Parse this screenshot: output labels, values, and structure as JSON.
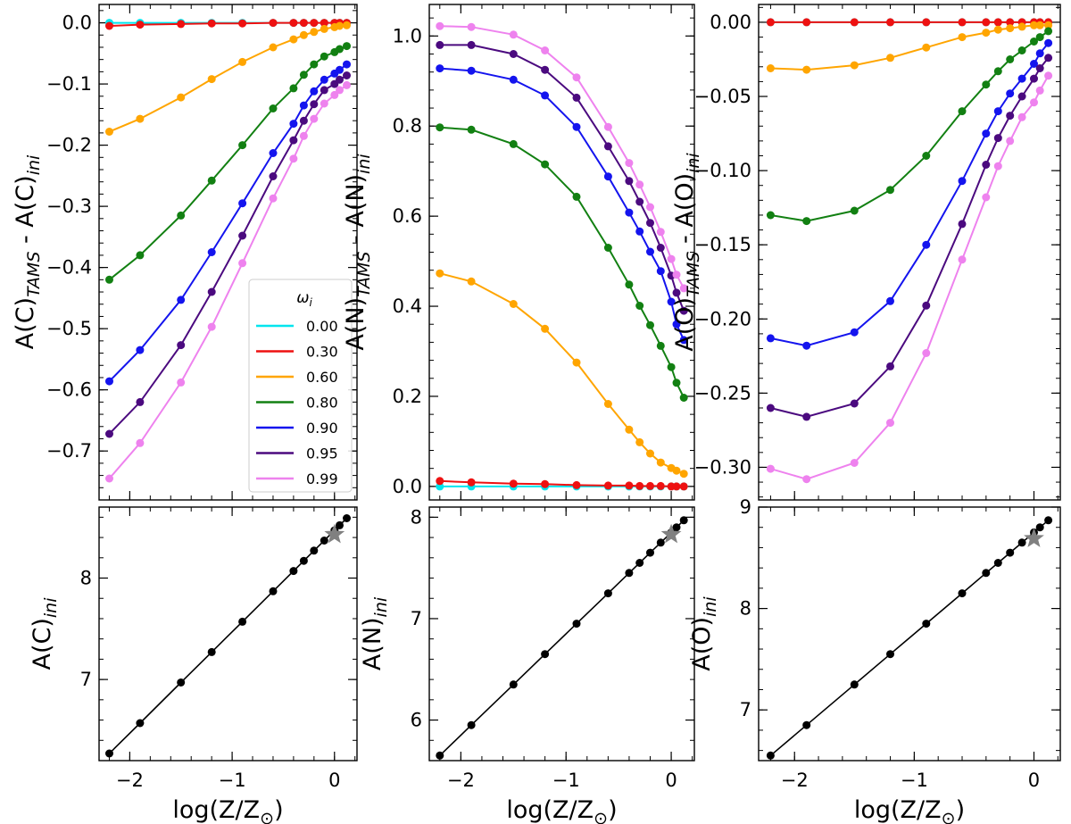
{
  "chart_data": [
    {
      "id": "carbon-top",
      "type": "line",
      "xlim": [
        -2.3,
        0.22
      ],
      "ylim": [
        -0.78,
        0.03
      ],
      "xticks": [
        -2,
        -1,
        0
      ],
      "yticks": [
        0.0,
        -0.1,
        -0.2,
        -0.3,
        -0.4,
        -0.5,
        -0.6,
        -0.7
      ],
      "ytick_labels": [
        "0.0",
        "−0.1",
        "−0.2",
        "−0.3",
        "−0.4",
        "−0.5",
        "−0.6",
        "−0.7"
      ],
      "x": [
        -2.2,
        -1.9,
        -1.5,
        -1.2,
        -0.9,
        -0.6,
        -0.4,
        -0.3,
        -0.2,
        -0.1,
        0.0,
        0.05,
        0.12
      ],
      "ylabel": {
        "base": "A(C)",
        "sub1": "TAMS",
        "mid": " - A(C)",
        "sub2": "ini"
      },
      "series": [
        {
          "name": "0.00",
          "color": "#00e5ee",
          "values": [
            0.0,
            0.0,
            0.0,
            0.0,
            0.0,
            0.0,
            0.0,
            0.0,
            0.0,
            0.0,
            0.0,
            0.0,
            0.0
          ]
        },
        {
          "name": "0.30",
          "color": "#ee1111",
          "values": [
            -0.005,
            -0.003,
            -0.002,
            -0.001,
            -0.001,
            0.0,
            0.0,
            0.0,
            0.0,
            0.0,
            0.0,
            0.0,
            0.0
          ]
        },
        {
          "name": "0.60",
          "color": "#ffa500",
          "values": [
            -0.178,
            -0.157,
            -0.122,
            -0.092,
            -0.064,
            -0.04,
            -0.027,
            -0.02,
            -0.015,
            -0.01,
            -0.007,
            -0.005,
            -0.004
          ]
        },
        {
          "name": "0.80",
          "color": "#128012",
          "values": [
            -0.42,
            -0.38,
            -0.315,
            -0.258,
            -0.2,
            -0.14,
            -0.107,
            -0.085,
            -0.068,
            -0.055,
            -0.048,
            -0.043,
            -0.038
          ]
        },
        {
          "name": "0.90",
          "color": "#1414ee",
          "values": [
            -0.586,
            -0.535,
            -0.453,
            -0.375,
            -0.295,
            -0.213,
            -0.165,
            -0.135,
            -0.112,
            -0.093,
            -0.083,
            -0.077,
            -0.068
          ]
        },
        {
          "name": "0.95",
          "color": "#4b0a7f",
          "values": [
            -0.672,
            -0.62,
            -0.527,
            -0.44,
            -0.348,
            -0.251,
            -0.192,
            -0.16,
            -0.133,
            -0.11,
            -0.1,
            -0.093,
            -0.086
          ]
        },
        {
          "name": "0.99",
          "color": "#ee82ee",
          "values": [
            -0.745,
            -0.687,
            -0.588,
            -0.497,
            -0.393,
            -0.287,
            -0.222,
            -0.185,
            -0.157,
            -0.132,
            -0.118,
            -0.11,
            -0.102
          ]
        }
      ],
      "legend": {
        "placement": "lower-right",
        "title": "ω",
        "title_sub": "i"
      }
    },
    {
      "id": "nitrogen-top",
      "type": "line",
      "xlim": [
        -2.3,
        0.22
      ],
      "ylim": [
        -0.03,
        1.07
      ],
      "xticks": [
        -2,
        -1,
        0
      ],
      "yticks": [
        0.0,
        0.2,
        0.4,
        0.6,
        0.8,
        1.0
      ],
      "ytick_labels": [
        "0.0",
        "0.2",
        "0.4",
        "0.6",
        "0.8",
        "1.0"
      ],
      "x": [
        -2.2,
        -1.9,
        -1.5,
        -1.2,
        -0.9,
        -0.6,
        -0.4,
        -0.3,
        -0.2,
        -0.1,
        0.0,
        0.05,
        0.12
      ],
      "ylabel": {
        "base": "A(N)",
        "sub1": "TAMS",
        "mid": " - A(N)",
        "sub2": "ini"
      },
      "series": [
        {
          "name": "0.00",
          "color": "#00e5ee",
          "values": [
            0.0,
            0.0,
            0.0,
            0.0,
            0.0,
            0.0,
            0.0,
            0.0,
            0.0,
            0.0,
            0.0,
            0.0,
            0.0
          ]
        },
        {
          "name": "0.30",
          "color": "#ee1111",
          "values": [
            0.012,
            0.009,
            0.006,
            0.005,
            0.003,
            0.002,
            0.002,
            0.001,
            0.001,
            0.001,
            0.0,
            0.0,
            0.0
          ]
        },
        {
          "name": "0.60",
          "color": "#ffa500",
          "values": [
            0.473,
            0.455,
            0.405,
            0.35,
            0.275,
            0.183,
            0.126,
            0.098,
            0.073,
            0.053,
            0.041,
            0.035,
            0.028
          ]
        },
        {
          "name": "0.80",
          "color": "#128012",
          "values": [
            0.797,
            0.792,
            0.76,
            0.715,
            0.643,
            0.53,
            0.448,
            0.401,
            0.358,
            0.312,
            0.265,
            0.23,
            0.197
          ]
        },
        {
          "name": "0.90",
          "color": "#1414ee",
          "values": [
            0.928,
            0.923,
            0.903,
            0.868,
            0.798,
            0.688,
            0.608,
            0.566,
            0.521,
            0.478,
            0.41,
            0.36,
            0.325
          ]
        },
        {
          "name": "0.95",
          "color": "#4b0a7f",
          "values": [
            0.98,
            0.98,
            0.96,
            0.925,
            0.863,
            0.755,
            0.678,
            0.632,
            0.585,
            0.53,
            0.468,
            0.43,
            0.39
          ]
        },
        {
          "name": "0.99",
          "color": "#ee82ee",
          "values": [
            1.022,
            1.02,
            1.003,
            0.968,
            0.908,
            0.798,
            0.718,
            0.67,
            0.62,
            0.565,
            0.505,
            0.47,
            0.44
          ]
        }
      ]
    },
    {
      "id": "oxygen-top",
      "type": "line",
      "xlim": [
        -2.3,
        0.22
      ],
      "ylim": [
        -0.322,
        0.012
      ],
      "xticks": [
        -2,
        -1,
        0
      ],
      "yticks": [
        0.0,
        -0.05,
        -0.1,
        -0.15,
        -0.2,
        -0.25,
        -0.3
      ],
      "ytick_labels": [
        "0.00",
        "−0.05",
        "−0.10",
        "−0.15",
        "−0.20",
        "−0.25",
        "−0.30"
      ],
      "x": [
        -2.2,
        -1.9,
        -1.5,
        -1.2,
        -0.9,
        -0.6,
        -0.4,
        -0.3,
        -0.2,
        -0.1,
        0.0,
        0.05,
        0.12
      ],
      "ylabel": {
        "base": "A(O)",
        "sub1": "TAMS",
        "mid": " - A(O)",
        "sub2": "ini"
      },
      "series": [
        {
          "name": "0.00",
          "color": "#00e5ee",
          "values": [
            0.0,
            0.0,
            0.0,
            0.0,
            0.0,
            0.0,
            0.0,
            0.0,
            0.0,
            0.0,
            0.0,
            0.0,
            0.0
          ]
        },
        {
          "name": "0.30",
          "color": "#ee1111",
          "values": [
            0.0,
            0.0,
            0.0,
            0.0,
            0.0,
            0.0,
            0.0,
            0.0,
            0.0,
            0.0,
            0.0,
            0.0,
            0.0
          ]
        },
        {
          "name": "0.60",
          "color": "#ffa500",
          "values": [
            -0.031,
            -0.032,
            -0.029,
            -0.024,
            -0.017,
            -0.01,
            -0.007,
            -0.005,
            -0.004,
            -0.003,
            -0.002,
            -0.002,
            -0.002
          ]
        },
        {
          "name": "0.80",
          "color": "#128012",
          "values": [
            -0.13,
            -0.134,
            -0.127,
            -0.113,
            -0.09,
            -0.06,
            -0.042,
            -0.033,
            -0.025,
            -0.019,
            -0.013,
            -0.01,
            -0.006
          ]
        },
        {
          "name": "0.90",
          "color": "#1414ee",
          "values": [
            -0.213,
            -0.218,
            -0.209,
            -0.188,
            -0.15,
            -0.107,
            -0.075,
            -0.06,
            -0.048,
            -0.038,
            -0.028,
            -0.021,
            -0.014
          ]
        },
        {
          "name": "0.95",
          "color": "#4b0a7f",
          "values": [
            -0.26,
            -0.266,
            -0.257,
            -0.232,
            -0.191,
            -0.136,
            -0.096,
            -0.078,
            -0.063,
            -0.05,
            -0.038,
            -0.031,
            -0.024
          ]
        },
        {
          "name": "0.99",
          "color": "#ee82ee",
          "values": [
            -0.301,
            -0.308,
            -0.297,
            -0.27,
            -0.223,
            -0.16,
            -0.118,
            -0.097,
            -0.08,
            -0.064,
            -0.054,
            -0.046,
            -0.036
          ]
        }
      ]
    },
    {
      "id": "carbon-bottom",
      "type": "line",
      "xlim": [
        -2.3,
        0.22
      ],
      "ylim": [
        6.2,
        8.7
      ],
      "xticks": [
        -2,
        -1,
        0
      ],
      "xtick_labels": [
        "−2",
        "−1",
        "0"
      ],
      "yticks": [
        7,
        8
      ],
      "ytick_labels": [
        "7",
        "8"
      ],
      "xlabel": {
        "base": "log(Z/Z",
        "sub": "⊙",
        "end": ")"
      },
      "ylabel": {
        "base": "A(C)",
        "sub": "ini"
      },
      "x": [
        -2.2,
        -1.9,
        -1.5,
        -1.2,
        -0.9,
        -0.6,
        -0.4,
        -0.3,
        -0.2,
        -0.1,
        0.0,
        0.05,
        0.12
      ],
      "series": [
        {
          "color": "#000000",
          "values": [
            6.27,
            6.57,
            6.97,
            7.27,
            7.57,
            7.87,
            8.07,
            8.17,
            8.27,
            8.37,
            8.47,
            8.52,
            8.59
          ]
        }
      ],
      "star": {
        "x": 0.0,
        "y": 8.43,
        "color": "#808080"
      }
    },
    {
      "id": "nitrogen-bottom",
      "type": "line",
      "xlim": [
        -2.3,
        0.22
      ],
      "ylim": [
        5.6,
        8.1
      ],
      "xticks": [
        -2,
        -1,
        0
      ],
      "xtick_labels": [
        "−2",
        "−1",
        "0"
      ],
      "yticks": [
        6,
        7,
        8
      ],
      "ytick_labels": [
        "6",
        "7",
        "8"
      ],
      "xlabel": {
        "base": "log(Z/Z",
        "sub": "⊙",
        "end": ")"
      },
      "ylabel": {
        "base": "A(N)",
        "sub": "ini"
      },
      "x": [
        -2.2,
        -1.9,
        -1.5,
        -1.2,
        -0.9,
        -0.6,
        -0.4,
        -0.3,
        -0.2,
        -0.1,
        0.0,
        0.05,
        0.12
      ],
      "series": [
        {
          "color": "#000000",
          "values": [
            5.65,
            5.95,
            6.35,
            6.65,
            6.95,
            7.25,
            7.45,
            7.55,
            7.65,
            7.75,
            7.85,
            7.9,
            7.97
          ]
        }
      ],
      "star": {
        "x": 0.0,
        "y": 7.83,
        "color": "#808080"
      }
    },
    {
      "id": "oxygen-bottom",
      "type": "line",
      "xlim": [
        -2.3,
        0.22
      ],
      "ylim": [
        6.5,
        9.0
      ],
      "xticks": [
        -2,
        -1,
        0
      ],
      "xtick_labels": [
        "−2",
        "−1",
        "0"
      ],
      "yticks": [
        7,
        8,
        9
      ],
      "ytick_labels": [
        "7",
        "8",
        "9"
      ],
      "xlabel": {
        "base": "log(Z/Z",
        "sub": "⊙",
        "end": ")"
      },
      "ylabel": {
        "base": "A(O)",
        "sub": "ini"
      },
      "x": [
        -2.2,
        -1.9,
        -1.5,
        -1.2,
        -0.9,
        -0.6,
        -0.4,
        -0.3,
        -0.2,
        -0.1,
        0.0,
        0.05,
        0.12
      ],
      "series": [
        {
          "color": "#000000",
          "values": [
            6.55,
            6.85,
            7.25,
            7.55,
            7.85,
            8.15,
            8.35,
            8.45,
            8.55,
            8.65,
            8.75,
            8.8,
            8.87
          ]
        }
      ],
      "star": {
        "x": 0.0,
        "y": 8.69,
        "color": "#808080"
      }
    }
  ]
}
